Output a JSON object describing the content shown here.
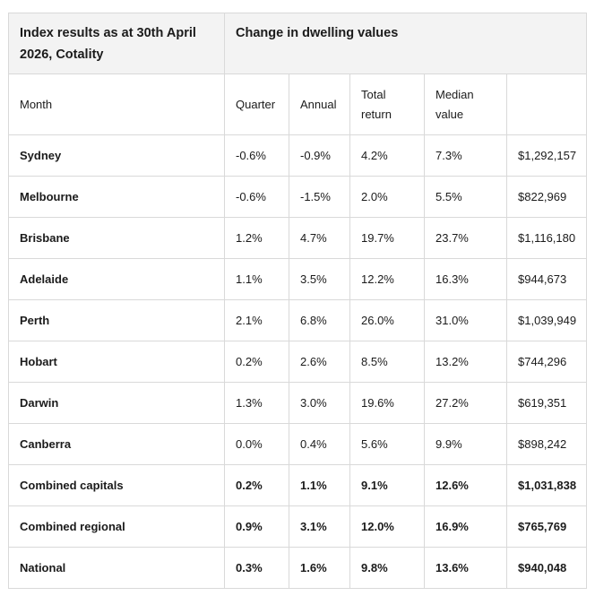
{
  "header": {
    "title": "Index results as at 30th April 2026, Cotality",
    "group_title": "Change in dwelling values"
  },
  "columns": {
    "month": "Month",
    "quarter": "Quarter",
    "annual": "Annual",
    "total_return": "Total return",
    "median_value": "Median value",
    "extra": ""
  },
  "rows": [
    {
      "name": "Sydney",
      "month_change": "-0.6%",
      "quarter": "-0.9%",
      "annual": "4.2%",
      "total_return": "7.3%",
      "median_value": "$1,292,157"
    },
    {
      "name": "Melbourne",
      "month_change": "-0.6%",
      "quarter": "-1.5%",
      "annual": "2.0%",
      "total_return": "5.5%",
      "median_value": "$822,969"
    },
    {
      "name": "Brisbane",
      "month_change": "1.2%",
      "quarter": "4.7%",
      "annual": "19.7%",
      "total_return": "23.7%",
      "median_value": "$1,116,180"
    },
    {
      "name": "Adelaide",
      "month_change": "1.1%",
      "quarter": "3.5%",
      "annual": "12.2%",
      "total_return": "16.3%",
      "median_value": "$944,673"
    },
    {
      "name": "Perth",
      "month_change": "2.1%",
      "quarter": "6.8%",
      "annual": "26.0%",
      "total_return": "31.0%",
      "median_value": "$1,039,949"
    },
    {
      "name": "Hobart",
      "month_change": "0.2%",
      "quarter": "2.6%",
      "annual": "8.5%",
      "total_return": "13.2%",
      "median_value": "$744,296"
    },
    {
      "name": "Darwin",
      "month_change": "1.3%",
      "quarter": "3.0%",
      "annual": "19.6%",
      "total_return": "27.2%",
      "median_value": "$619,351"
    },
    {
      "name": "Canberra",
      "month_change": "0.0%",
      "quarter": "0.4%",
      "annual": "5.6%",
      "total_return": "9.9%",
      "median_value": "$898,242"
    },
    {
      "name": "Combined capitals",
      "month_change": "0.2%",
      "quarter": "1.1%",
      "annual": "9.1%",
      "total_return": "12.6%",
      "median_value": "$1,031,838"
    },
    {
      "name": "Combined regional",
      "month_change": "0.9%",
      "quarter": "3.1%",
      "annual": "12.0%",
      "total_return": "16.9%",
      "median_value": "$765,769"
    },
    {
      "name": "National",
      "month_change": "0.3%",
      "quarter": "1.6%",
      "annual": "9.8%",
      "total_return": "13.6%",
      "median_value": "$940,048"
    }
  ]
}
